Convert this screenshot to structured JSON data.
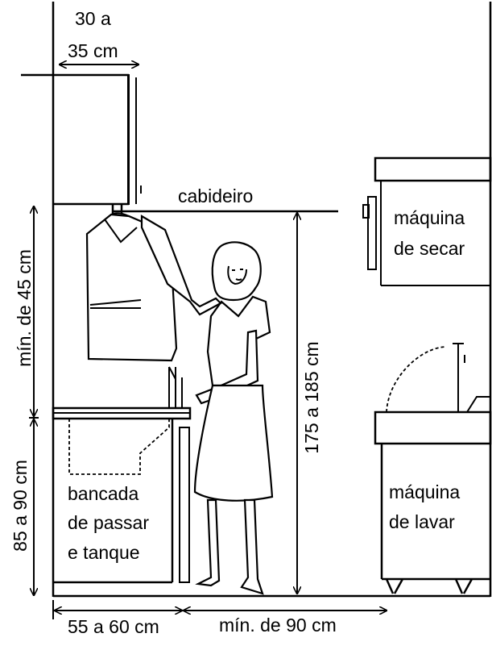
{
  "labels": {
    "cabinet_depth": [
      "30 a",
      "35 cm"
    ],
    "hanger": "cabideiro",
    "dryer": [
      "máquina",
      "de secar"
    ],
    "washer": [
      "máquina",
      "de lavar"
    ],
    "counter": [
      "bancada",
      "de passar",
      "e tanque"
    ],
    "min_upper": "mín. de 45 cm",
    "counter_height": "85 a 90 cm",
    "hanger_height": "175 a 185 cm",
    "counter_depth": "55 a 60 cm",
    "clearance": "mín. de 90 cm"
  }
}
